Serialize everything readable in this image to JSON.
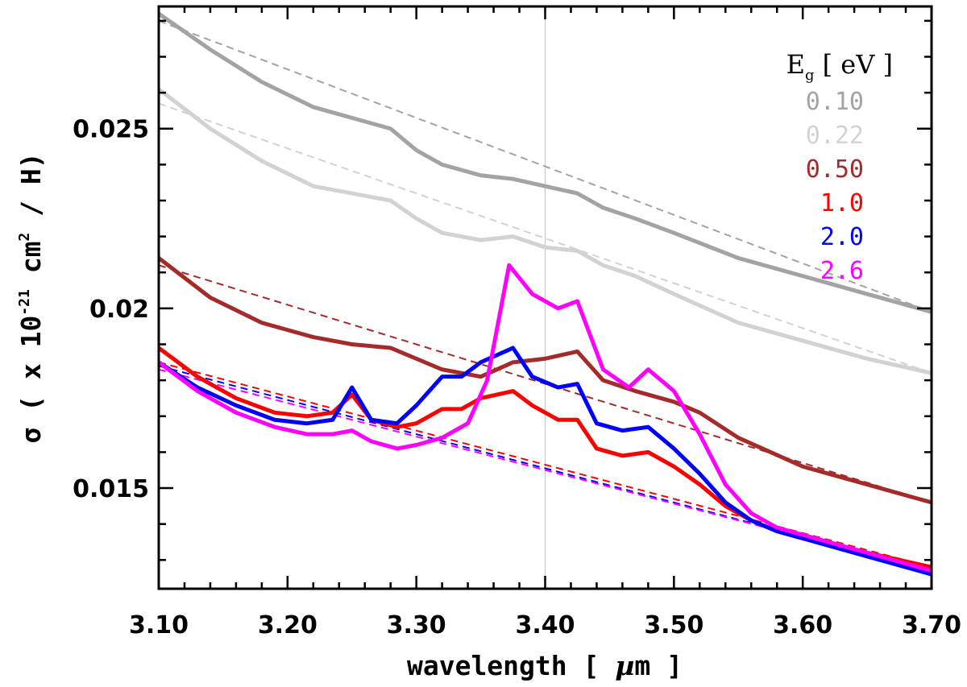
{
  "chart_data": {
    "type": "line",
    "xlabel_parts": [
      "wavelength [ ",
      "µ",
      "m ]"
    ],
    "ylabel_parts": [
      "σ ( x 10",
      "-21",
      " cm",
      "2",
      " / H)"
    ],
    "xlim": [
      3.1,
      3.7
    ],
    "ylim": [
      0.0122,
      0.0284
    ],
    "xticks": [
      3.1,
      3.2,
      3.3,
      3.4,
      3.5,
      3.6,
      3.7
    ],
    "xtick_labels": [
      "3.10",
      "3.20",
      "3.30",
      "3.40",
      "3.50",
      "3.60",
      "3.70"
    ],
    "yticks": [
      0.015,
      0.02,
      0.025
    ],
    "ytick_labels": [
      "0.015",
      "0.02",
      "0.025"
    ],
    "vline_x": 3.4,
    "legend": {
      "title_main": "E",
      "title_sub": "g",
      "title_unit": " [ eV ]",
      "placement": "top-right"
    },
    "series": [
      {
        "name": "0.10",
        "color": "#a3a3a3",
        "x": [
          3.1,
          3.14,
          3.18,
          3.22,
          3.25,
          3.28,
          3.3,
          3.32,
          3.35,
          3.375,
          3.4,
          3.425,
          3.445,
          3.47,
          3.5,
          3.55,
          3.6,
          3.65,
          3.7
        ],
        "values": [
          0.0282,
          0.0272,
          0.0263,
          0.0256,
          0.0253,
          0.025,
          0.0244,
          0.024,
          0.0237,
          0.0236,
          0.0234,
          0.0232,
          0.0228,
          0.0225,
          0.0221,
          0.0214,
          0.0209,
          0.0204,
          0.0199
        ],
        "baseline_x": [
          3.1,
          3.7
        ],
        "baseline_values": [
          0.028,
          0.0199
        ]
      },
      {
        "name": "0.22",
        "color": "#d2d2d2",
        "x": [
          3.1,
          3.14,
          3.18,
          3.22,
          3.25,
          3.28,
          3.3,
          3.32,
          3.35,
          3.375,
          3.4,
          3.425,
          3.445,
          3.47,
          3.5,
          3.55,
          3.6,
          3.65,
          3.7
        ],
        "values": [
          0.0261,
          0.025,
          0.0241,
          0.0234,
          0.0232,
          0.023,
          0.0225,
          0.0221,
          0.0219,
          0.022,
          0.0217,
          0.0216,
          0.0212,
          0.0209,
          0.0204,
          0.0196,
          0.0191,
          0.0186,
          0.0182
        ],
        "baseline_x": [
          3.1,
          3.7
        ],
        "baseline_values": [
          0.0257,
          0.0182
        ]
      },
      {
        "name": "0.50",
        "color": "#a52a2a",
        "x": [
          3.1,
          3.14,
          3.18,
          3.22,
          3.25,
          3.28,
          3.3,
          3.32,
          3.35,
          3.375,
          3.4,
          3.425,
          3.445,
          3.47,
          3.5,
          3.52,
          3.55,
          3.6,
          3.65,
          3.7
        ],
        "values": [
          0.0214,
          0.0203,
          0.0196,
          0.0192,
          0.019,
          0.0189,
          0.0186,
          0.0183,
          0.0181,
          0.0185,
          0.0186,
          0.0188,
          0.018,
          0.0177,
          0.0174,
          0.0171,
          0.0164,
          0.0156,
          0.0151,
          0.0146
        ],
        "baseline_x": [
          3.1,
          3.7
        ],
        "baseline_values": [
          0.0212,
          0.0146
        ]
      },
      {
        "name": "1.0",
        "color": "#ff0000",
        "x": [
          3.1,
          3.13,
          3.16,
          3.19,
          3.215,
          3.235,
          3.25,
          3.265,
          3.285,
          3.3,
          3.32,
          3.335,
          3.35,
          3.375,
          3.39,
          3.41,
          3.425,
          3.44,
          3.46,
          3.48,
          3.5,
          3.52,
          3.54,
          3.56,
          3.58,
          3.6,
          3.65,
          3.7
        ],
        "values": [
          0.0189,
          0.0181,
          0.0175,
          0.0171,
          0.017,
          0.0171,
          0.0176,
          0.0169,
          0.0167,
          0.0168,
          0.0172,
          0.0172,
          0.0175,
          0.0177,
          0.0173,
          0.0169,
          0.0169,
          0.0161,
          0.0159,
          0.016,
          0.0156,
          0.0151,
          0.0145,
          0.0141,
          0.0138,
          0.0136,
          0.0132,
          0.0128
        ],
        "baseline_x": [
          3.1,
          3.7
        ],
        "baseline_values": [
          0.0185,
          0.0128
        ]
      },
      {
        "name": "2.0",
        "color": "#0000ff",
        "x": [
          3.1,
          3.13,
          3.16,
          3.19,
          3.215,
          3.235,
          3.25,
          3.265,
          3.285,
          3.3,
          3.32,
          3.335,
          3.35,
          3.375,
          3.39,
          3.41,
          3.425,
          3.44,
          3.46,
          3.48,
          3.5,
          3.52,
          3.54,
          3.56,
          3.58,
          3.6,
          3.65,
          3.7
        ],
        "values": [
          0.0185,
          0.0178,
          0.0173,
          0.0169,
          0.0168,
          0.0169,
          0.0178,
          0.0169,
          0.0168,
          0.0173,
          0.0181,
          0.0181,
          0.0185,
          0.0189,
          0.0181,
          0.0178,
          0.0179,
          0.0168,
          0.0166,
          0.0167,
          0.0161,
          0.0154,
          0.0146,
          0.0141,
          0.0138,
          0.0136,
          0.0131,
          0.0126
        ],
        "baseline_x": [
          3.1,
          3.7
        ],
        "baseline_values": [
          0.0184,
          0.0127
        ]
      },
      {
        "name": "2.6",
        "color": "#ff00ff",
        "x": [
          3.1,
          3.13,
          3.16,
          3.19,
          3.215,
          3.235,
          3.25,
          3.265,
          3.285,
          3.3,
          3.32,
          3.34,
          3.355,
          3.372,
          3.39,
          3.41,
          3.425,
          3.445,
          3.465,
          3.48,
          3.5,
          3.52,
          3.54,
          3.56,
          3.58,
          3.6,
          3.65,
          3.7
        ],
        "values": [
          0.0185,
          0.0177,
          0.0171,
          0.0167,
          0.0165,
          0.0165,
          0.0166,
          0.0163,
          0.0161,
          0.0162,
          0.0164,
          0.0168,
          0.018,
          0.0212,
          0.0204,
          0.02,
          0.0202,
          0.0183,
          0.0178,
          0.0183,
          0.0177,
          0.0165,
          0.0151,
          0.0143,
          0.0139,
          0.0137,
          0.0132,
          0.0127
        ],
        "baseline_x": [
          3.1,
          3.7
        ],
        "baseline_values": [
          0.0183,
          0.0127
        ]
      }
    ]
  }
}
